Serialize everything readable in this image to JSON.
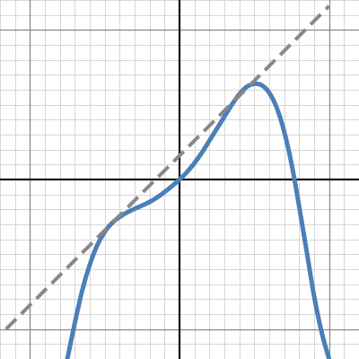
{
  "chart_data": {
    "type": "line",
    "title": "",
    "xlabel": "",
    "ylabel": "",
    "xlim": [
      -6,
      6
    ],
    "ylim": [
      -6,
      6
    ],
    "grid": true,
    "grid_step": 0.5,
    "axes_visible": true,
    "tick_labels_visible": false,
    "series": [
      {
        "style": "solid",
        "color": "#4a7fb8",
        "x": [
          -3.75,
          -3.5,
          -3.25,
          -3.0,
          -2.75,
          -2.5,
          -2.25,
          -2.0,
          -1.75,
          -1.5,
          -1.25,
          -1.0,
          -0.75,
          -0.5,
          -0.25,
          0.0,
          0.25,
          0.5,
          0.75,
          1.0,
          1.25,
          1.5,
          1.75,
          2.0,
          2.25,
          2.5,
          2.75,
          3.0,
          3.25,
          3.5,
          3.75,
          4.0,
          4.25,
          4.5,
          4.75,
          5.0
        ],
        "y": [
          -6.0,
          -4.8,
          -3.7,
          -2.85,
          -2.2,
          -1.75,
          -1.45,
          -1.25,
          -1.1,
          -0.98,
          -0.87,
          -0.75,
          -0.6,
          -0.42,
          -0.22,
          0.0,
          0.25,
          0.55,
          0.9,
          1.3,
          1.7,
          2.1,
          2.5,
          2.85,
          3.1,
          3.2,
          3.15,
          2.9,
          2.4,
          1.6,
          0.5,
          -0.9,
          -2.4,
          -3.9,
          -5.1,
          -6.0
        ]
      },
      {
        "style": "dashed",
        "color": "#888888",
        "x": [
          -5.8,
          5.0
        ],
        "y": [
          -5.0,
          5.8
        ]
      }
    ]
  }
}
